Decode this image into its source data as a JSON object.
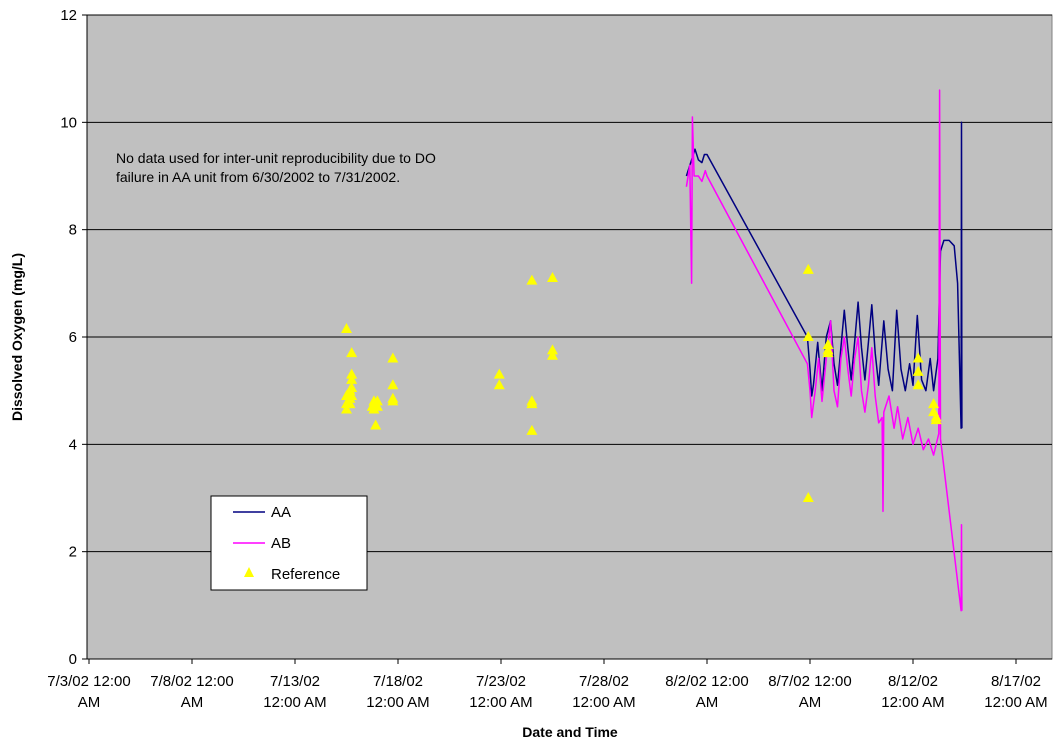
{
  "chart_data": {
    "type": "line",
    "title": "",
    "xlabel": "Date and Time",
    "ylabel": "Dissolved Oxygen (mg/L)",
    "ylim": [
      0,
      12
    ],
    "yticks": [
      0,
      2,
      4,
      6,
      8,
      10,
      12
    ],
    "xlim": [
      "2002-07-03 00:00",
      "2002-08-17 00:00"
    ],
    "xticks": [
      {
        "x": "2002-07-03",
        "line1": "7/3/02 12:00",
        "line2": "AM"
      },
      {
        "x": "2002-07-08",
        "line1": "7/8/02 12:00",
        "line2": "AM"
      },
      {
        "x": "2002-07-13",
        "line1": "7/13/02",
        "line2": "12:00 AM"
      },
      {
        "x": "2002-07-18",
        "line1": "7/18/02",
        "line2": "12:00 AM"
      },
      {
        "x": "2002-07-23",
        "line1": "7/23/02",
        "line2": "12:00 AM"
      },
      {
        "x": "2002-07-28",
        "line1": "7/28/02",
        "line2": "12:00 AM"
      },
      {
        "x": "2002-08-02",
        "line1": "8/2/02 12:00",
        "line2": "AM"
      },
      {
        "x": "2002-08-07",
        "line1": "8/7/02 12:00",
        "line2": "AM"
      },
      {
        "x": "2002-08-12",
        "line1": "8/12/02",
        "line2": "12:00 AM"
      },
      {
        "x": "2002-08-17",
        "line1": "8/17/02",
        "line2": "12:00 AM"
      }
    ],
    "grid": true,
    "legend_position": "bottom-left",
    "annotation": [
      "No data used for inter-unit  reproducibility due to DO",
      "failure in AA unit from 6/30/2002 to 7/31/2002."
    ],
    "series": [
      {
        "name": "AA",
        "type": "line",
        "color": "#000080",
        "points": [
          [
            "2002-08-01 00:00",
            9.0
          ],
          [
            "2002-08-01 06:00",
            9.3
          ],
          [
            "2002-08-01 10:00",
            9.5
          ],
          [
            "2002-08-01 14:00",
            9.3
          ],
          [
            "2002-08-01 18:00",
            9.25
          ],
          [
            "2002-08-01 21:00",
            9.4
          ],
          [
            "2002-08-02 00:00",
            9.4
          ],
          [
            "2002-08-06 21:00",
            6.0
          ],
          [
            "2002-08-07 00:00",
            5.4
          ],
          [
            "2002-08-07 02:00",
            4.9
          ],
          [
            "2002-08-07 04:00",
            5.1
          ],
          [
            "2002-08-07 09:00",
            5.9
          ],
          [
            "2002-08-07 14:00",
            5.0
          ],
          [
            "2002-08-07 19:00",
            6.0
          ],
          [
            "2002-08-08 00:00",
            6.3
          ],
          [
            "2002-08-08 04:00",
            5.5
          ],
          [
            "2002-08-08 08:00",
            5.1
          ],
          [
            "2002-08-08 12:00",
            5.8
          ],
          [
            "2002-08-08 16:00",
            6.5
          ],
          [
            "2002-08-08 20:00",
            5.8
          ],
          [
            "2002-08-09 00:00",
            5.2
          ],
          [
            "2002-08-09 04:00",
            5.9
          ],
          [
            "2002-08-09 08:00",
            6.65
          ],
          [
            "2002-08-09 12:00",
            5.8
          ],
          [
            "2002-08-09 16:00",
            5.2
          ],
          [
            "2002-08-09 20:00",
            5.9
          ],
          [
            "2002-08-10 00:00",
            6.6
          ],
          [
            "2002-08-10 04:00",
            5.7
          ],
          [
            "2002-08-10 08:00",
            5.1
          ],
          [
            "2002-08-10 14:00",
            6.3
          ],
          [
            "2002-08-10 19:00",
            5.4
          ],
          [
            "2002-08-11 00:00",
            5.0
          ],
          [
            "2002-08-11 05:00",
            6.5
          ],
          [
            "2002-08-11 10:00",
            5.4
          ],
          [
            "2002-08-11 15:00",
            5.0
          ],
          [
            "2002-08-11 20:00",
            5.5
          ],
          [
            "2002-08-12 00:00",
            5.1
          ],
          [
            "2002-08-12 05:00",
            6.4
          ],
          [
            "2002-08-12 10:00",
            5.2
          ],
          [
            "2002-08-12 15:00",
            5.0
          ],
          [
            "2002-08-12 20:00",
            5.6
          ],
          [
            "2002-08-13 00:00",
            5.0
          ],
          [
            "2002-08-13 05:00",
            5.6
          ],
          [
            "2002-08-13 08:00",
            7.6
          ],
          [
            "2002-08-13 12:00",
            7.8
          ],
          [
            "2002-08-13 18:00",
            7.8
          ],
          [
            "2002-08-14 00:00",
            7.7
          ],
          [
            "2002-08-14 04:00",
            7.0
          ],
          [
            "2002-08-14 08:00",
            4.3
          ],
          [
            "2002-08-14 08:30",
            10.0
          ],
          [
            "2002-08-14 09:00",
            4.3
          ]
        ]
      },
      {
        "name": "AB",
        "type": "line",
        "color": "#FF00FF",
        "points": [
          [
            "2002-08-01 00:00",
            8.8
          ],
          [
            "2002-08-01 04:00",
            9.2
          ],
          [
            "2002-08-01 06:00",
            7.0
          ],
          [
            "2002-08-01 07:00",
            10.1
          ],
          [
            "2002-08-01 09:00",
            9.0
          ],
          [
            "2002-08-01 14:00",
            9.0
          ],
          [
            "2002-08-01 18:00",
            8.9
          ],
          [
            "2002-08-01 22:00",
            9.1
          ],
          [
            "2002-08-02 00:00",
            9.0
          ],
          [
            "2002-08-06 21:00",
            5.5
          ],
          [
            "2002-08-07 00:00",
            5.0
          ],
          [
            "2002-08-07 02:00",
            4.5
          ],
          [
            "2002-08-07 06:00",
            5.0
          ],
          [
            "2002-08-07 10:00",
            5.6
          ],
          [
            "2002-08-07 14:00",
            4.8
          ],
          [
            "2002-08-07 19:00",
            5.6
          ],
          [
            "2002-08-08 00:00",
            6.3
          ],
          [
            "2002-08-08 04:00",
            5.0
          ],
          [
            "2002-08-08 08:00",
            4.7
          ],
          [
            "2002-08-08 12:00",
            5.6
          ],
          [
            "2002-08-08 16:00",
            6.0
          ],
          [
            "2002-08-08 20:00",
            5.4
          ],
          [
            "2002-08-09 00:00",
            4.9
          ],
          [
            "2002-08-09 04:00",
            5.6
          ],
          [
            "2002-08-09 08:00",
            6.0
          ],
          [
            "2002-08-09 12:00",
            5.0
          ],
          [
            "2002-08-09 16:00",
            4.6
          ],
          [
            "2002-08-09 20:00",
            5.1
          ],
          [
            "2002-08-10 00:00",
            5.8
          ],
          [
            "2002-08-10 04:00",
            4.9
          ],
          [
            "2002-08-10 08:00",
            4.4
          ],
          [
            "2002-08-10 12:00",
            4.5
          ],
          [
            "2002-08-10 13:00",
            2.75
          ],
          [
            "2002-08-10 14:00",
            4.6
          ],
          [
            "2002-08-10 20:00",
            4.9
          ],
          [
            "2002-08-11 02:00",
            4.3
          ],
          [
            "2002-08-11 06:00",
            4.7
          ],
          [
            "2002-08-11 12:00",
            4.1
          ],
          [
            "2002-08-11 18:00",
            4.5
          ],
          [
            "2002-08-12 00:00",
            4.0
          ],
          [
            "2002-08-12 06:00",
            4.3
          ],
          [
            "2002-08-12 12:00",
            3.9
          ],
          [
            "2002-08-12 18:00",
            4.1
          ],
          [
            "2002-08-13 00:00",
            3.8
          ],
          [
            "2002-08-13 06:00",
            4.2
          ],
          [
            "2002-08-13 07:00",
            10.6
          ],
          [
            "2002-08-13 08:00",
            4.1
          ],
          [
            "2002-08-14 08:00",
            0.9
          ],
          [
            "2002-08-14 08:30",
            2.5
          ],
          [
            "2002-08-14 09:00",
            0.9
          ]
        ]
      },
      {
        "name": "Reference",
        "type": "scatter",
        "color": "#FFFF00",
        "points": [
          [
            "2002-07-15 12:00",
            6.15
          ],
          [
            "2002-07-15 12:00",
            4.9
          ],
          [
            "2002-07-15 12:00",
            4.75
          ],
          [
            "2002-07-15 12:00",
            4.65
          ],
          [
            "2002-07-15 16:00",
            5.0
          ],
          [
            "2002-07-15 16:00",
            4.85
          ],
          [
            "2002-07-15 16:00",
            4.75
          ],
          [
            "2002-07-15 18:00",
            5.7
          ],
          [
            "2002-07-15 18:00",
            5.3
          ],
          [
            "2002-07-15 18:00",
            5.2
          ],
          [
            "2002-07-15 18:00",
            5.05
          ],
          [
            "2002-07-15 18:00",
            4.9
          ],
          [
            "2002-07-16 18:00",
            4.7
          ],
          [
            "2002-07-16 20:00",
            4.8
          ],
          [
            "2002-07-16 20:00",
            4.75
          ],
          [
            "2002-07-16 20:00",
            4.65
          ],
          [
            "2002-07-16 22:00",
            4.35
          ],
          [
            "2002-07-17 00:00",
            4.8
          ],
          [
            "2002-07-17 00:00",
            4.7
          ],
          [
            "2002-07-17 18:00",
            5.6
          ],
          [
            "2002-07-17 18:00",
            5.1
          ],
          [
            "2002-07-17 18:00",
            4.85
          ],
          [
            "2002-07-17 18:00",
            4.8
          ],
          [
            "2002-07-22 22:00",
            5.3
          ],
          [
            "2002-07-22 22:00",
            5.1
          ],
          [
            "2002-07-24 12:00",
            7.05
          ],
          [
            "2002-07-24 12:00",
            4.8
          ],
          [
            "2002-07-24 12:00",
            4.75
          ],
          [
            "2002-07-24 12:00",
            4.25
          ],
          [
            "2002-07-25 12:00",
            7.1
          ],
          [
            "2002-07-25 12:00",
            5.75
          ],
          [
            "2002-07-25 12:00",
            5.65
          ],
          [
            "2002-08-06 22:00",
            7.25
          ],
          [
            "2002-08-06 22:00",
            6.0
          ],
          [
            "2002-08-06 22:00",
            3.0
          ],
          [
            "2002-08-07 21:00",
            5.85
          ],
          [
            "2002-08-07 21:00",
            5.75
          ],
          [
            "2002-08-07 21:00",
            5.7
          ],
          [
            "2002-08-12 06:00",
            5.6
          ],
          [
            "2002-08-12 06:00",
            5.35
          ],
          [
            "2002-08-12 06:00",
            5.1
          ],
          [
            "2002-08-13 00:00",
            4.75
          ],
          [
            "2002-08-13 00:00",
            4.6
          ],
          [
            "2002-08-13 03:00",
            4.5
          ],
          [
            "2002-08-13 03:00",
            4.45
          ]
        ]
      }
    ]
  }
}
